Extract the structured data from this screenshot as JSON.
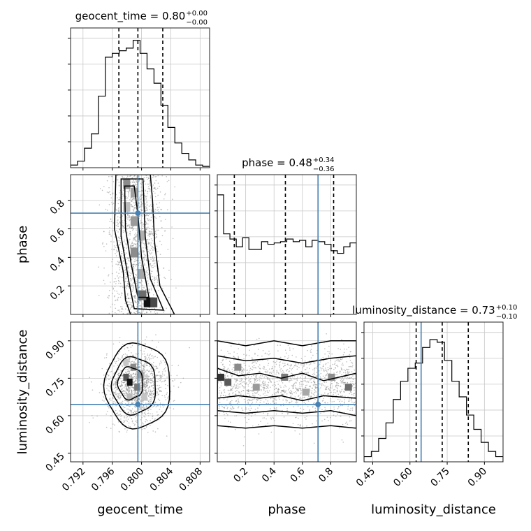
{
  "chart_data": {
    "type": "corner",
    "parameters": [
      "geocent_time",
      "phase",
      "luminosity_distance"
    ],
    "truths": {
      "geocent_time": 0.7995,
      "phase": 0.71,
      "luminosity_distance": 0.645
    },
    "diag": [
      {
        "param": "geocent_time",
        "title_name": "geocent_time",
        "title_value": "0.80",
        "title_plus": "+0.00",
        "title_minus": "−0.00",
        "xlim": [
          0.7903,
          0.8093
        ],
        "quantiles": [
          0.7969,
          0.7995,
          0.8029
        ],
        "hist": [
          0.02,
          0.05,
          0.15,
          0.26,
          0.55,
          0.85,
          0.88,
          0.9,
          0.92,
          0.98,
          0.88,
          0.76,
          0.65,
          0.48,
          0.31,
          0.19,
          0.11,
          0.06,
          0.02,
          0.01
        ],
        "show_truth": false
      },
      {
        "param": "phase",
        "title_name": "phase",
        "title_value": "0.48",
        "title_plus": "+0.34",
        "title_minus": "−0.36",
        "xlim": [
          0.0,
          0.98
        ],
        "quantiles": [
          0.12,
          0.48,
          0.82
        ],
        "hist": [
          0.92,
          0.62,
          0.58,
          0.52,
          0.59,
          0.5,
          0.5,
          0.56,
          0.54,
          0.55,
          0.56,
          0.58,
          0.56,
          0.57,
          0.52,
          0.57,
          0.56,
          0.54,
          0.49,
          0.47,
          0.52,
          0.55
        ],
        "show_truth": true
      },
      {
        "param": "luminosity_distance",
        "title_name": "luminosity_distance",
        "title_value": "0.73",
        "title_plus": "+0.10",
        "title_minus": "−0.10",
        "xlim": [
          0.415,
          0.975
        ],
        "quantiles": [
          0.625,
          0.73,
          0.835
        ],
        "hist": [
          0.04,
          0.08,
          0.18,
          0.3,
          0.48,
          0.62,
          0.72,
          0.76,
          0.88,
          0.94,
          0.92,
          0.78,
          0.62,
          0.5,
          0.36,
          0.25,
          0.15,
          0.08,
          0.04
        ],
        "show_truth": true
      }
    ],
    "pairs": [
      {
        "x": "geocent_time",
        "y": "phase",
        "xlim": [
          0.7903,
          0.8093
        ],
        "ylim": [
          0.0,
          0.98
        ]
      },
      {
        "x": "geocent_time",
        "y": "luminosity_distance",
        "xlim": [
          0.7903,
          0.8093
        ],
        "ylim": [
          0.415,
          0.975
        ]
      },
      {
        "x": "phase",
        "y": "luminosity_distance",
        "xlim": [
          0.0,
          0.98
        ],
        "ylim": [
          0.415,
          0.975
        ]
      }
    ],
    "ticks": {
      "geocent_time": [
        "0.792",
        "0.796",
        "0.800",
        "0.804",
        "0.808"
      ],
      "phase": [
        "0.2",
        "0.4",
        "0.6",
        "0.8"
      ],
      "luminosity_distance": [
        "0.45",
        "0.60",
        "0.75",
        "0.90"
      ]
    },
    "xlabels": [
      "geocent_time",
      "phase",
      "luminosity_distance"
    ],
    "ylabels": [
      "phase",
      "luminosity_distance"
    ],
    "grid": true,
    "colors": {
      "truth": "#4682b4",
      "hist": "#000000",
      "points": "#888888"
    }
  }
}
